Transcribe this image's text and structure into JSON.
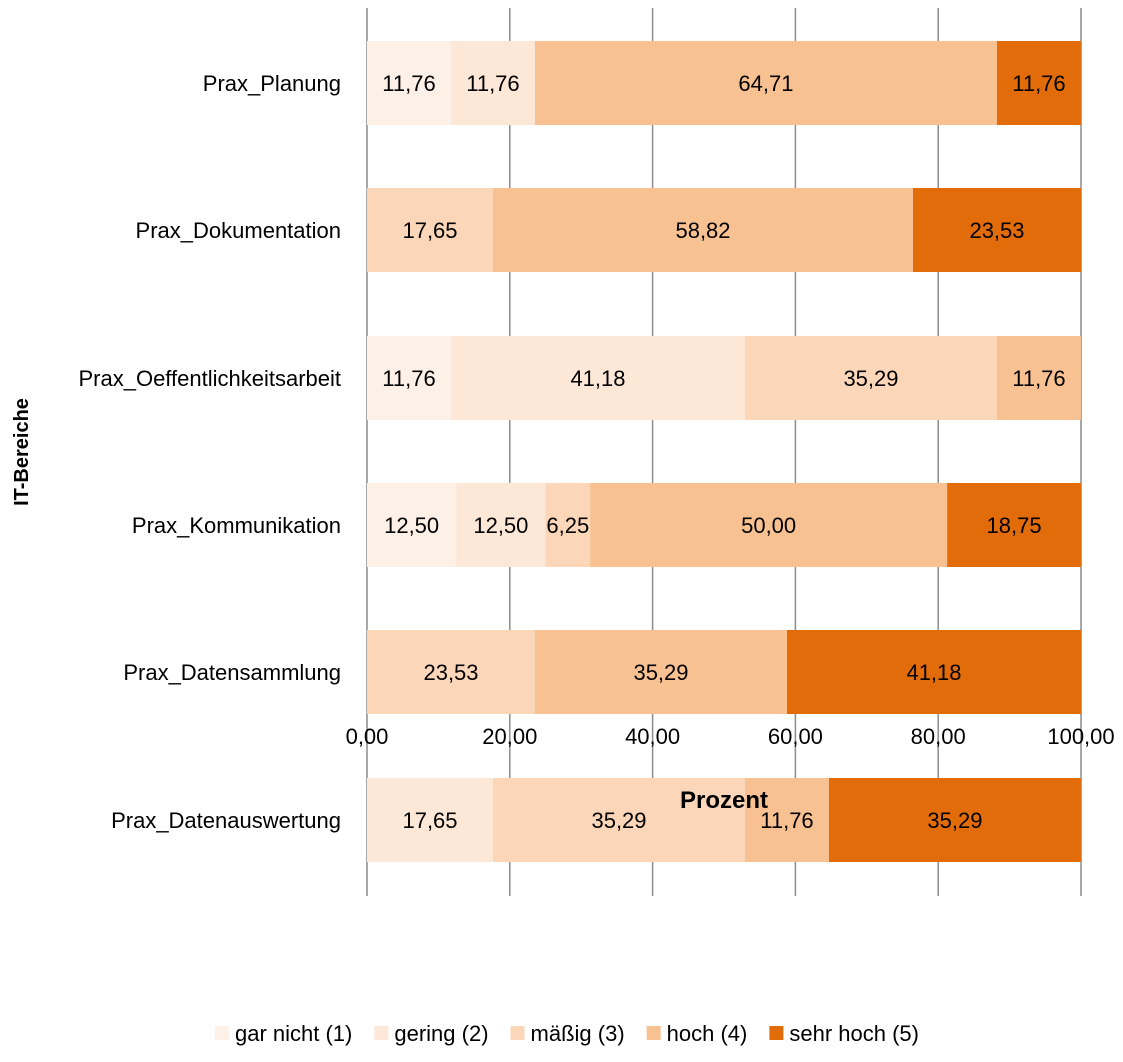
{
  "chart_data": {
    "type": "bar",
    "orientation": "horizontal",
    "stacked": true,
    "xlabel": "Prozent",
    "ylabel": "IT-Bereiche",
    "xlim": [
      0,
      100
    ],
    "xticks": [
      "0,00",
      "20,00",
      "40,00",
      "60,00",
      "80,00",
      "100,00"
    ],
    "grid": true,
    "legend_position": "bottom",
    "categories": [
      "Prax_Planung",
      "Prax_Dokumentation",
      "Prax_Oeffentlichkeitsarbeit",
      "Prax_Kommunikation",
      "Prax_Datensammlung",
      "Prax_Datenauswertung"
    ],
    "series": [
      {
        "name": "gar nicht (1)",
        "color": "#fdf0e6",
        "values": [
          11.76,
          null,
          11.76,
          12.5,
          null,
          null
        ],
        "labels": [
          "11,76",
          "",
          "11,76",
          "12,50",
          "",
          ""
        ]
      },
      {
        "name": "gering (2)",
        "color": "#fde7d6",
        "values": [
          11.76,
          null,
          41.18,
          12.5,
          null,
          17.65
        ],
        "labels": [
          "11,76",
          "",
          "41,18",
          "12,50",
          "",
          "17,65"
        ]
      },
      {
        "name": "mäßig (3)",
        "color": "#fbd6b8",
        "values": [
          null,
          17.65,
          35.29,
          6.25,
          23.53,
          35.29
        ],
        "labels": [
          "",
          "17,65",
          "35,29",
          "6,25",
          "23,53",
          "35,29"
        ]
      },
      {
        "name": "hoch (4)",
        "color": "#f8c192",
        "values": [
          64.71,
          58.82,
          11.76,
          50.0,
          35.29,
          11.76
        ],
        "labels": [
          "64,71",
          "58,82",
          "11,76",
          "50,00",
          "35,29",
          "11,76"
        ]
      },
      {
        "name": "sehr hoch (5)",
        "color": "#e36c0a",
        "values": [
          11.76,
          23.53,
          null,
          18.75,
          41.18,
          35.29
        ],
        "labels": [
          "11,76",
          "23,53",
          "",
          "18,75",
          "41,18",
          "35,29"
        ]
      }
    ]
  }
}
